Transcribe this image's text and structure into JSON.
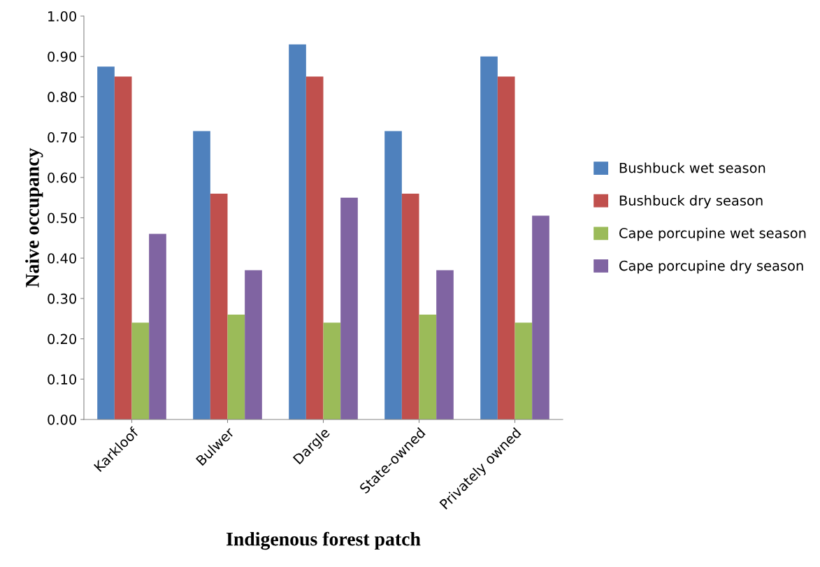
{
  "chart_data": {
    "type": "bar",
    "xlabel": "Indigenous forest patch",
    "ylabel": "Naive occupancy",
    "categories": [
      "Karkloof",
      "Bulwer",
      "Dargle",
      "State-owned",
      "Privately owned"
    ],
    "series": [
      {
        "name": "Bushbuck wet season",
        "color": "#4f81bd",
        "values": [
          0.875,
          0.715,
          0.93,
          0.715,
          0.9
        ]
      },
      {
        "name": "Bushbuck dry season",
        "color": "#c0504d",
        "values": [
          0.85,
          0.56,
          0.85,
          0.56,
          0.85
        ]
      },
      {
        "name": "Cape porcupine wet season",
        "color": "#9bbb59",
        "values": [
          0.24,
          0.26,
          0.24,
          0.26,
          0.24
        ]
      },
      {
        "name": "Cape porcupine dry season",
        "color": "#8064a2",
        "values": [
          0.46,
          0.37,
          0.55,
          0.37,
          0.505
        ]
      }
    ],
    "ylim": [
      0,
      1
    ],
    "yticks": [
      {
        "value": 0,
        "label": "0.00"
      },
      {
        "value": 0.1,
        "label": "0.10"
      },
      {
        "value": 0.2,
        "label": "0.20"
      },
      {
        "value": 0.3,
        "label": "0.30"
      },
      {
        "value": 0.4,
        "label": "0.40"
      },
      {
        "value": 0.5,
        "label": "0.50"
      },
      {
        "value": 0.6,
        "label": "0.60"
      },
      {
        "value": 0.7,
        "label": "0.70"
      },
      {
        "value": 0.8,
        "label": "0.80"
      },
      {
        "value": 0.9,
        "label": "0.90"
      },
      {
        "value": 1,
        "label": "1.00"
      }
    ],
    "grid": false,
    "legend": "right"
  }
}
